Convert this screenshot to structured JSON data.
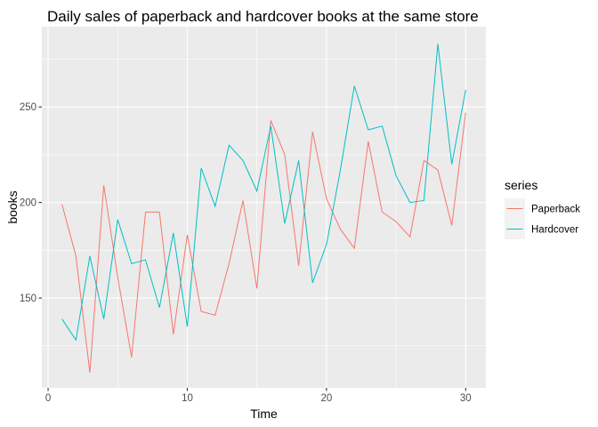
{
  "chart_data": {
    "type": "line",
    "title": "Daily sales of paperback and hardcover books at the same store",
    "xlabel": "Time",
    "ylabel": "books",
    "xlim": [
      -0.45,
      31.45
    ],
    "ylim": [
      103,
      292
    ],
    "x_ticks": [
      0,
      10,
      20,
      30
    ],
    "y_ticks": [
      150,
      200,
      250
    ],
    "grid": true,
    "legend_placement": "right",
    "legend_title": "series",
    "x": [
      1,
      2,
      3,
      4,
      5,
      6,
      7,
      8,
      9,
      10,
      11,
      12,
      13,
      14,
      15,
      16,
      17,
      18,
      19,
      20,
      21,
      22,
      23,
      24,
      25,
      26,
      27,
      28,
      29,
      30
    ],
    "series": [
      {
        "name": "Paperback",
        "color": "#F8766D",
        "values": [
          199,
          172,
          111,
          209,
          161,
          119,
          195,
          195,
          131,
          183,
          143,
          141,
          168,
          201,
          155,
          243,
          225,
          167,
          237,
          202,
          186,
          176,
          232,
          195,
          190,
          182,
          222,
          217,
          188,
          247
        ]
      },
      {
        "name": "Hardcover",
        "color": "#00BFC4",
        "values": [
          139,
          128,
          172,
          139,
          191,
          168,
          170,
          145,
          184,
          135,
          218,
          198,
          230,
          222,
          206,
          240,
          189,
          222,
          158,
          178,
          217,
          261,
          238,
          240,
          214,
          200,
          201,
          283,
          220,
          259
        ]
      }
    ]
  }
}
